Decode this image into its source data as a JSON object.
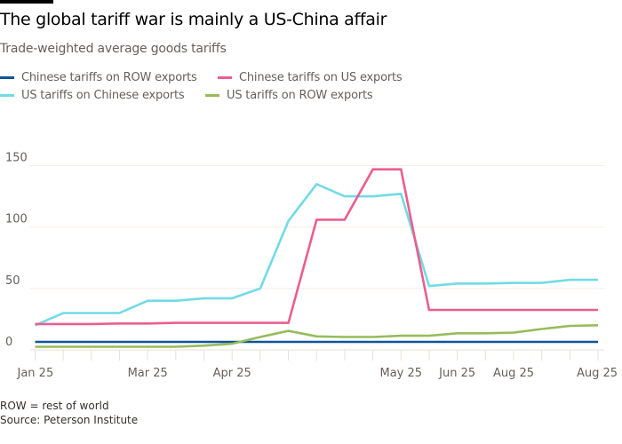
{
  "header": {
    "title": "The global tariff war is mainly a US-China affair",
    "subtitle": "Trade-weighted average goods tariffs"
  },
  "footer": {
    "note": "ROW = rest of world",
    "source": "Source: Peterson Institute"
  },
  "chart_data": {
    "type": "line",
    "title": "The global tariff war is mainly a US-China affair",
    "subtitle": "Trade-weighted average goods tariffs",
    "xlabel": "",
    "ylabel": "",
    "ylim": [
      0,
      150
    ],
    "yticks": [
      0,
      50,
      100,
      150
    ],
    "grid": true,
    "legend_position": "top-left",
    "x_tick_labels": [
      "Jan 25",
      "",
      "",
      "",
      "Mar 25",
      "",
      "",
      "Apr 25",
      "",
      "",
      "",
      "",
      "",
      "May 25",
      "",
      "Jun 25",
      "",
      "Aug 25",
      "",
      "",
      "Aug 25"
    ],
    "series": [
      {
        "name": "Chinese tariffs on ROW exports",
        "color": "#0f5499",
        "values": [
          6.5,
          6.5,
          6.5,
          6.5,
          6.5,
          6.5,
          6.5,
          6.5,
          6.5,
          6.5,
          6.5,
          6.5,
          6.5,
          6.5,
          6.5,
          6.5,
          6.5,
          6.5,
          6.5,
          6.5,
          6.5
        ]
      },
      {
        "name": "Chinese tariffs on US exports",
        "color": "#eb5e8d",
        "values": [
          21,
          21,
          21,
          21.5,
          21.5,
          22,
          22,
          22,
          22,
          22,
          106,
          106,
          147,
          147,
          32.5,
          32.5,
          32.5,
          32.5,
          32.5,
          32.5,
          32.5
        ]
      },
      {
        "name": "US tariffs on Chinese exports",
        "color": "#72dbe6",
        "values": [
          20,
          30,
          30,
          30,
          40,
          40,
          42,
          42,
          50,
          105,
          135,
          125,
          125,
          127,
          52,
          54,
          54,
          54.5,
          54.5,
          57,
          57
        ]
      },
      {
        "name": "US tariffs on ROW exports",
        "color": "#96bc5b",
        "values": [
          2.5,
          2.5,
          2.5,
          2.5,
          2.5,
          2.5,
          3.5,
          5,
          10.5,
          15.5,
          11,
          10.5,
          10.5,
          11.5,
          11.5,
          13.5,
          13.5,
          14,
          17,
          19.5,
          20
        ]
      }
    ]
  }
}
